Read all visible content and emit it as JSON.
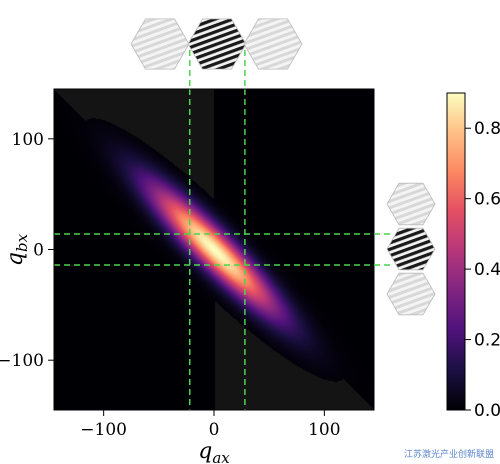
{
  "chart_data": {
    "type": "heatmap",
    "title": "",
    "xlabel": "q",
    "xlabel_sub": "ax",
    "ylabel": "q",
    "ylabel_sub": "bx",
    "xlim": [
      -145,
      145
    ],
    "ylim": [
      -145,
      145
    ],
    "xticks": [
      -100,
      0,
      100
    ],
    "yticks": [
      100,
      0,
      -100
    ],
    "xtick_labels": [
      "−100",
      "0",
      "100"
    ],
    "ytick_labels": [
      "100",
      "0",
      "−100"
    ],
    "colormap": "magma",
    "colorbar": {
      "range": [
        0.0,
        0.9
      ],
      "ticks": [
        0.0,
        0.2,
        0.4,
        0.6,
        0.8
      ],
      "tick_labels": [
        "0.0",
        "0.2",
        "0.4",
        "0.6",
        "0.8"
      ]
    },
    "distribution": {
      "description_type": "anti-correlated gaussian ridge along q_bx = -q_ax",
      "peak": 0.9,
      "ridge_sigma": 11,
      "along_sigma": 55,
      "center": [
        0,
        0
      ]
    },
    "guide_lines": {
      "color": "#4cd44c",
      "vertical_at_qax": [
        -22,
        28
      ],
      "horizontal_at_qbx": [
        14,
        -14
      ]
    },
    "insets": {
      "top": [
        "light-grating",
        "dark-grating",
        "light-grating"
      ],
      "right": [
        "light-grating",
        "dark-grating",
        "light-grating"
      ]
    }
  },
  "watermark": "江苏激光产业创新联盟"
}
